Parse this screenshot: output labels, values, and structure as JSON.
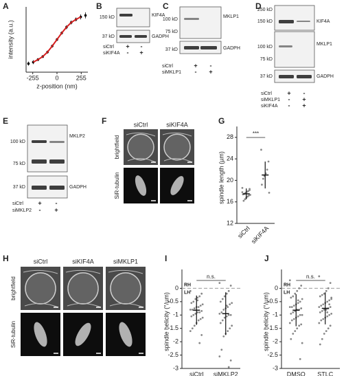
{
  "panel_letters": [
    "A",
    "B",
    "C",
    "D",
    "E",
    "F",
    "G",
    "H",
    "I",
    "J"
  ],
  "blots": [
    {
      "markers": [
        "150 kD",
        "37 kD"
      ],
      "proteins": [
        "KIF4A",
        "GADPH"
      ],
      "conditions": [
        "siCtrl",
        "siKIF4A"
      ],
      "signs": [
        [
          "+",
          "-"
        ],
        [
          "-",
          "+"
        ]
      ]
    },
    {
      "markers": [
        "100 kD",
        "75 kD",
        "37 kD"
      ],
      "proteins": [
        "MKLP1",
        "GADPH"
      ],
      "conditions": [
        "siCtrl",
        "siMKLP1"
      ],
      "signs": [
        [
          "+",
          "-"
        ],
        [
          "-",
          "+"
        ]
      ]
    },
    {
      "markers": [
        "250 kD",
        "150 kD",
        "100 kD",
        "75 kD",
        "37 kD"
      ],
      "proteins": [
        "KIF4A",
        "MKLP1",
        "GADPH"
      ],
      "conditions": [
        "siCtrl",
        "siMKLP1",
        "siKIF4A"
      ],
      "signs": [
        [
          "+",
          "-"
        ],
        [
          "-",
          "+"
        ],
        [
          "-",
          "+"
        ]
      ]
    },
    {
      "markers": [
        "100 kD",
        "75 kD",
        "37 kD"
      ],
      "proteins": [
        "MKLP2",
        "GADPH"
      ],
      "conditions": [
        "siCtrl",
        "siMKLP2"
      ],
      "signs": [
        [
          "+",
          "-"
        ],
        [
          "-",
          "+"
        ]
      ]
    }
  ],
  "micrographs": [
    {
      "columns": [
        "siCtrl",
        "siKIF4A"
      ],
      "rows": [
        "brightfield",
        "SiR-tubulin"
      ]
    },
    {
      "columns": [
        "siCtrl",
        "siKIF4A",
        "siMKLP1"
      ],
      "rows": [
        "brightfield",
        "SiR-tubulin"
      ]
    }
  ],
  "chart_data": [
    {
      "type": "line",
      "xlabel": "z-position (nm)",
      "ylabel": "intensity (a.u.)",
      "x": [
        -300,
        -250,
        -200,
        -150,
        -100,
        -50,
        0,
        50,
        100,
        150,
        200,
        250,
        300
      ],
      "xlim": [
        -325,
        325
      ],
      "xticks": [
        -255,
        0,
        255
      ],
      "ylim": [
        50,
        180
      ],
      "series": [
        {
          "color": "#000000",
          "values": [
            67,
            70,
            75,
            81,
            90,
            102,
            115,
            128,
            139.5,
            149,
            155,
            160,
            163
          ],
          "errors": [
            4,
            4,
            3,
            3,
            3,
            3,
            3,
            3,
            4,
            4,
            4,
            5,
            6
          ]
        },
        {
          "color": "#d62020",
          "values": [
            null,
            70,
            75,
            81,
            90,
            102,
            115,
            128,
            139.5,
            149,
            155,
            160,
            null
          ]
        }
      ]
    },
    {
      "type": "strip",
      "ylabel": "spindle length (µm)",
      "categories": [
        "siCtrl",
        "siKIF4A"
      ],
      "ylim": [
        12,
        29
      ],
      "yticks": [
        12,
        16,
        20,
        24,
        28
      ],
      "significance": "***",
      "values": [
        [
          18.6,
          18.2,
          18,
          17.9,
          17.7,
          17.5,
          17.4,
          17.3,
          17.2,
          17,
          16.8,
          16.5,
          16.2,
          17.8,
          18.4
        ],
        [
          25.7,
          23.5,
          22,
          21.3,
          20.8,
          20.3,
          19.2,
          17.7
        ]
      ],
      "means": [
        17.5,
        21
      ],
      "sd": [
        1,
        2.5
      ]
    },
    {
      "type": "strip",
      "ylabel": "spindle helicity (°/µm)",
      "categories": [
        "siCtrl",
        "siMKLP2"
      ],
      "ylim": [
        -3,
        0.5
      ],
      "yticks": [
        0,
        -0.5,
        -1,
        -1.5,
        -2,
        -2.5,
        -3
      ],
      "significance": "n.s.",
      "rh_label": "RH",
      "lh_label": "LH",
      "values": [
        [
          -0.1,
          -0.2,
          -0.3,
          -0.35,
          -0.4,
          -0.5,
          -0.55,
          -0.6,
          -0.65,
          -0.7,
          -0.7,
          -0.75,
          -0.8,
          -0.8,
          -0.85,
          -0.9,
          -0.9,
          -0.95,
          -1,
          -1.05,
          -1.1,
          -1.15,
          -1.2,
          -1.3,
          -1.4,
          -1.5,
          -1.6,
          -1.75,
          -2.05,
          -0.45
        ],
        [
          0.2,
          0.1,
          -0.1,
          -0.2,
          -0.3,
          -0.4,
          -0.5,
          -0.55,
          -0.6,
          -0.7,
          -0.75,
          -0.8,
          -0.9,
          -0.95,
          -1,
          -1,
          -1.05,
          -1.1,
          -1.2,
          -1.3,
          -1.4,
          -1.5,
          -1.6,
          -1.7,
          -1.8,
          -2.3,
          -2.55,
          -2.7,
          -2.95,
          -0.65
        ]
      ],
      "means": [
        -0.82,
        -0.95
      ],
      "sd": [
        0.55,
        0.8
      ]
    },
    {
      "type": "strip",
      "ylabel": "spindle helicity (°/µm)",
      "categories": [
        "DMSO",
        "STLC"
      ],
      "ylim": [
        -3,
        0.5
      ],
      "yticks": [
        0,
        -0.5,
        -1,
        -1.5,
        -2,
        -2.5,
        -3
      ],
      "significance": "n.s.",
      "rh_label": "RH",
      "lh_label": "LH",
      "values": [
        [
          0.3,
          0.1,
          0,
          -0.1,
          -0.2,
          -0.3,
          -0.35,
          -0.4,
          -0.5,
          -0.55,
          -0.6,
          -0.65,
          -0.7,
          -0.7,
          -0.75,
          -0.8,
          -0.8,
          -0.85,
          -0.9,
          -0.95,
          -1,
          -1,
          -1.05,
          -1.1,
          -1.15,
          -1.2,
          -1.3,
          -1.35,
          -1.4,
          -1.5,
          -1.6,
          -1.7,
          -1.9,
          -2.05,
          -2.65,
          -0.45
        ],
        [
          0.45,
          0.2,
          0,
          -0.1,
          -0.2,
          -0.25,
          -0.3,
          -0.4,
          -0.45,
          -0.5,
          -0.55,
          -0.6,
          -0.65,
          -0.7,
          -0.7,
          -0.75,
          -0.8,
          -0.8,
          -0.85,
          -0.9,
          -0.95,
          -1,
          -1.05,
          -1.1,
          -1.15,
          -1.2,
          -1.3,
          -1.4,
          -1.5,
          -1.6,
          -1.7,
          -1.9,
          -2.1,
          -0.35,
          -0.6,
          -0.9
        ]
      ],
      "means": [
        -0.82,
        -0.75
      ],
      "sd": [
        0.6,
        0.6
      ]
    }
  ]
}
